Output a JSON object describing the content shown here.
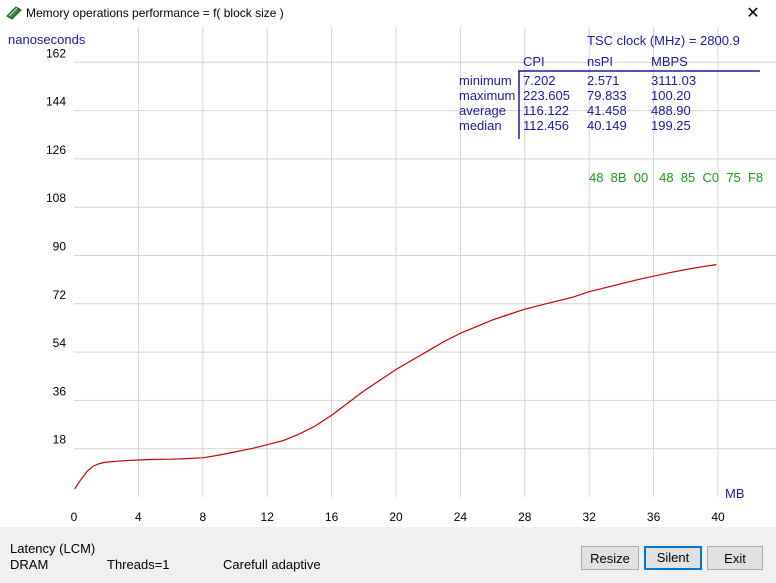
{
  "window": {
    "title": "Memory operations performance = f( block size )",
    "close_symbol": "✕"
  },
  "chart_data": {
    "type": "line",
    "ylabel": "nanoseconds",
    "xlabel": "MB",
    "x_ticks": [
      0,
      4,
      8,
      12,
      16,
      20,
      24,
      28,
      32,
      36,
      40
    ],
    "y_ticks": [
      18,
      36,
      54,
      72,
      90,
      108,
      126,
      144,
      162
    ],
    "xlim": [
      0,
      42
    ],
    "ylim": [
      0,
      174
    ],
    "grid": true,
    "series_color": "#cc0000",
    "series": [
      {
        "points": [
          [
            0.05,
            3
          ],
          [
            0.2,
            4.5
          ],
          [
            0.5,
            7
          ],
          [
            0.8,
            9.5
          ],
          [
            1.2,
            11.5
          ],
          [
            1.6,
            12.5
          ],
          [
            2,
            13
          ],
          [
            3,
            13.5
          ],
          [
            4,
            13.8
          ],
          [
            5,
            14
          ],
          [
            6,
            14.1
          ],
          [
            7,
            14.3
          ],
          [
            8,
            14.6
          ],
          [
            9,
            15.6
          ],
          [
            10,
            16.8
          ],
          [
            11,
            18
          ],
          [
            12,
            19.5
          ],
          [
            13,
            21
          ],
          [
            14,
            23.5
          ],
          [
            15,
            26.5
          ],
          [
            16,
            30.5
          ],
          [
            17,
            35
          ],
          [
            18,
            39.5
          ],
          [
            19,
            43.5
          ],
          [
            20,
            47.5
          ],
          [
            21,
            51
          ],
          [
            22,
            54.5
          ],
          [
            23,
            58
          ],
          [
            24,
            61
          ],
          [
            25,
            63.5
          ],
          [
            26,
            66
          ],
          [
            27,
            68
          ],
          [
            28,
            70
          ],
          [
            29,
            71.5
          ],
          [
            30,
            73
          ],
          [
            31,
            74.5
          ],
          [
            32,
            76.5
          ],
          [
            33,
            78
          ],
          [
            34,
            79.5
          ],
          [
            35,
            81
          ],
          [
            36,
            82.3
          ],
          [
            37,
            83.6
          ],
          [
            38,
            84.8
          ],
          [
            39,
            85.8
          ],
          [
            39.9,
            86.6
          ]
        ]
      }
    ]
  },
  "stats_table": {
    "tsc_label": "TSC clock (MHz) = 2800.9",
    "headers": [
      "CPI",
      "nsPI",
      "MBPS"
    ],
    "rows": [
      {
        "label": "minimum",
        "values": [
          "7.202",
          "2.571",
          "3111.03"
        ]
      },
      {
        "label": "maximum",
        "values": [
          "223.605",
          "79.833",
          "100.20"
        ]
      },
      {
        "label": "average",
        "values": [
          "116.122",
          "41.458",
          "488.90"
        ]
      },
      {
        "label": "median",
        "values": [
          "112.456",
          "40.149",
          "199.25"
        ]
      }
    ],
    "hex_bytes": "48  8B  00   48  85  C0  75  F8"
  },
  "status": {
    "mode": "Latency (LCM)",
    "memory": "DRAM",
    "threads": "Threads=1",
    "method": "Carefull adaptive"
  },
  "buttons": {
    "resize": "Resize",
    "silent": "Silent",
    "exit": "Exit"
  }
}
